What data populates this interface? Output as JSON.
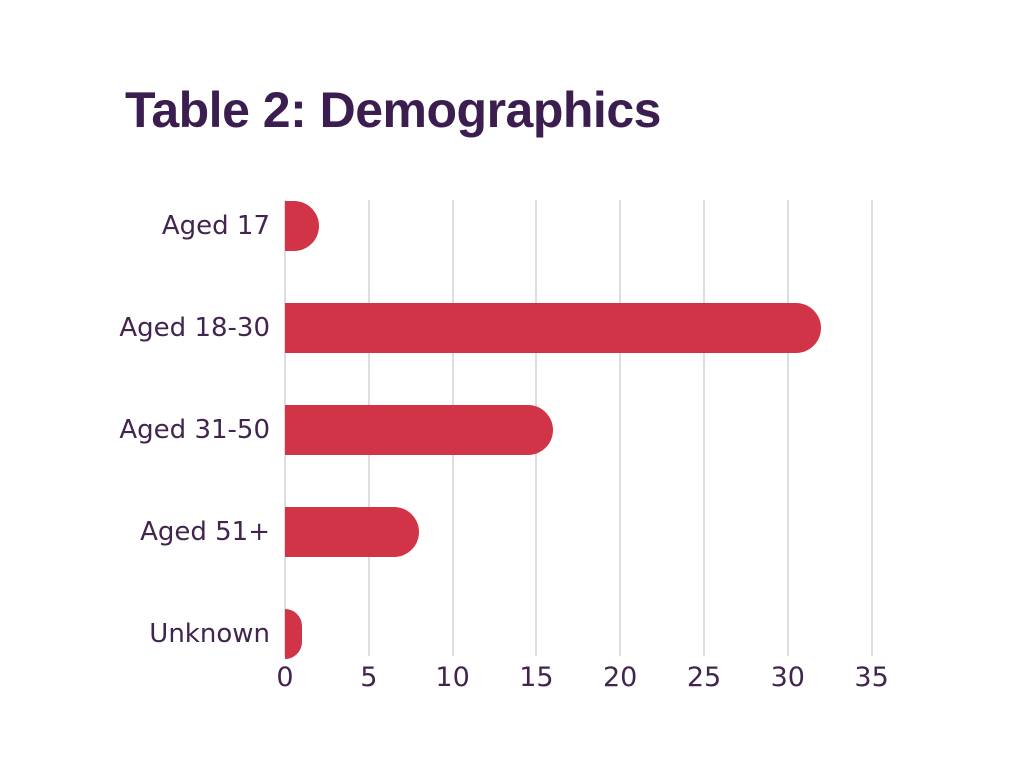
{
  "title": {
    "text": "Table 2: Demographics",
    "color": "#3b1e4f"
  },
  "chart_data": {
    "type": "bar",
    "orientation": "horizontal",
    "title": "Table 2: Demographics",
    "categories": [
      "Aged 17",
      "Aged 18-30",
      "Aged 31-50",
      "Aged 51+",
      "Unknown"
    ],
    "values": [
      2,
      32,
      16,
      8,
      1
    ],
    "xticks": [
      "0",
      "5",
      "10",
      "15",
      "20",
      "25",
      "30",
      "35"
    ],
    "xtick_values": [
      0,
      5,
      10,
      15,
      20,
      25,
      30,
      35
    ],
    "xlim": [
      0,
      35
    ],
    "grid": true,
    "legend_position": "none",
    "bar_color": "#d23447",
    "gridline_color": "#e0dde2",
    "axis_text_color": "#42254f",
    "background_color": "#ffffff"
  }
}
